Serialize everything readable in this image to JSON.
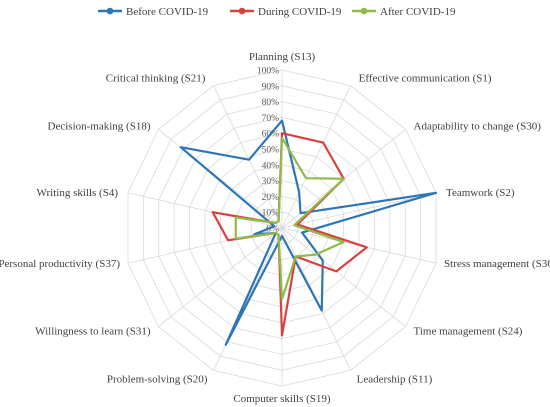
{
  "chart_data": {
    "type": "radar",
    "categories": [
      "Planning (S13)",
      "Effective communication (S1)",
      "Adaptability to change (S30)",
      "Teamwork (S2)",
      "Stress management (S36)",
      "Time management (S24)",
      "Leadership (S11)",
      "Computer skills (S19)",
      "Problem-solving (S20)",
      "Willingness to learn (S31)",
      "Personal productivity (S37)",
      "Writing skills (S4)",
      "Decision-making (S18)",
      "Critical thinking (S21)"
    ],
    "tick_labels": [
      "0%",
      "10%",
      "20%",
      "30%",
      "40%",
      "50%",
      "60%",
      "70%",
      "80%",
      "90%",
      "100%"
    ],
    "rlim": [
      0,
      100
    ],
    "grid": true,
    "legend_position": "top",
    "series": [
      {
        "name": "Before COVID-19",
        "color": "#2e75b6",
        "values": [
          68,
          25,
          15,
          100,
          13,
          33,
          58,
          5,
          82,
          5,
          18,
          5,
          82,
          48
        ]
      },
      {
        "name": "During COVID-19",
        "color": "#d94141",
        "values": [
          60,
          60,
          50,
          10,
          55,
          44,
          20,
          68,
          5,
          5,
          35,
          45,
          5,
          5
        ]
      },
      {
        "name": "After COVID-19",
        "color": "#8fbc48",
        "values": [
          57,
          35,
          50,
          8,
          40,
          27,
          20,
          45,
          5,
          5,
          30,
          30,
          5,
          5
        ]
      }
    ]
  }
}
